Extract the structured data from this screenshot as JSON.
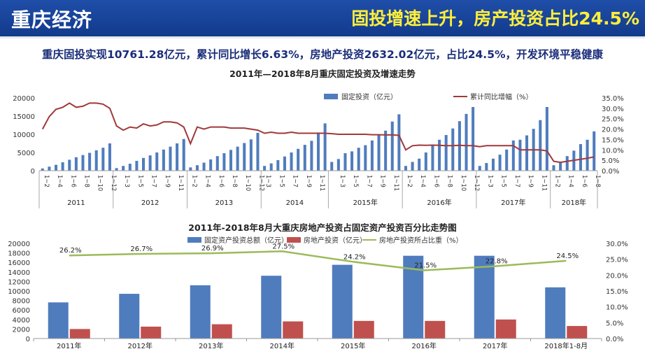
{
  "header": {
    "title": "重庆经济",
    "headline": "固投增速上升，房产投资占比24.5%"
  },
  "summary": "重庆固投实现10761.28亿元，累计同比增长6.63%，房地产投资2632.02亿元，占比24.5%，开发环境平稳健康",
  "colors": {
    "header_bg": "#1b4aa0",
    "headline": "#ffef3a",
    "bar_blue": "#4f7cbd",
    "bar_red": "#c0504d",
    "line_red": "#a0393a",
    "line_green": "#9bbb59"
  },
  "chart_data": [
    {
      "type": "bar",
      "title": "2011年—2018年8月重庆固定投资及增速走势",
      "year_labels": [
        "2011",
        "2012",
        "2013",
        "2014",
        "2015年",
        "2016年",
        "2017年",
        "2018年"
      ],
      "groups": [
        {
          "months": [
            "1~2",
            "1~3",
            "1~4",
            "1~5",
            "1~6",
            "1~7",
            "1~8",
            "1~9",
            "1~10",
            "1~11",
            "1~12"
          ],
          "visible_ticks": [
            "1~2",
            "1~4",
            "1~6",
            "1~8",
            "1~10",
            "1~12"
          ],
          "values": [
            600,
            1100,
            1600,
            2300,
            3000,
            3700,
            4300,
            4900,
            5600,
            6300,
            7500
          ],
          "growth": [
            20.0,
            26.0,
            29.5,
            30.5,
            32.5,
            30.5,
            31.0,
            32.5,
            32.5,
            32.0,
            30.0
          ]
        },
        {
          "months": [
            "1~2",
            "1~3",
            "1~4",
            "1~5",
            "1~6",
            "1~7",
            "1~8",
            "1~9",
            "1~10",
            "1~11",
            "1~12"
          ],
          "visible_ticks": [
            "1~3",
            "1~5",
            "1~7",
            "1~9",
            "1~11"
          ],
          "values": [
            700,
            1300,
            1900,
            2700,
            3500,
            4200,
            5000,
            5800,
            6600,
            7500,
            8700
          ],
          "growth": [
            21.5,
            19.5,
            21.0,
            20.5,
            22.5,
            21.5,
            22.0,
            23.5,
            23.5,
            23.0,
            21.0
          ]
        },
        {
          "months": [
            "1~2",
            "1~3",
            "1~4",
            "1~5",
            "1~6",
            "1~7",
            "1~8",
            "1~9",
            "1~10",
            "1~11",
            "1~12"
          ],
          "visible_ticks": [
            "1~2",
            "1~4",
            "1~6",
            "1~8",
            "1~10",
            "1~12"
          ],
          "values": [
            900,
            1500,
            2200,
            3100,
            4000,
            4800,
            5700,
            6600,
            7600,
            8600,
            10400
          ],
          "growth": [
            13.0,
            21.0,
            20.0,
            21.0,
            21.0,
            21.0,
            20.5,
            20.5,
            20.5,
            20.0,
            19.5
          ]
        },
        {
          "months": [
            "1~3",
            "1~4",
            "1~5",
            "1~6",
            "1~7",
            "1~8",
            "1~9",
            "1~10",
            "1~11",
            "1~12"
          ],
          "visible_ticks": [
            "1~3",
            "1~5",
            "1~7",
            "1~9",
            "1~11"
          ],
          "values": [
            1300,
            2000,
            2900,
            3900,
            5000,
            6000,
            7100,
            8200,
            10500,
            13000
          ],
          "growth": [
            18.0,
            18.5,
            18.0,
            18.0,
            18.5,
            18.0,
            18.0,
            18.0,
            18.0,
            18.0
          ]
        },
        {
          "months": [
            "1~2",
            "1~3",
            "1~4",
            "1~5",
            "1~6",
            "1~7",
            "1~8",
            "1~9",
            "1~10",
            "1~11",
            "1~12"
          ],
          "visible_ticks": [
            "1~3",
            "1~5",
            "1~7",
            "1~9",
            "1~11"
          ],
          "values": [
            2400,
            3200,
            4800,
            5300,
            6300,
            7000,
            8300,
            9800,
            11000,
            13500,
            15500
          ],
          "growth": [
            17.8,
            17.5,
            17.5,
            17.5,
            17.5,
            17.5,
            17.3,
            17.3,
            17.2,
            17.2,
            17.0
          ]
        },
        {
          "months": [
            "1~2",
            "1~3",
            "1~4",
            "1~5",
            "1~6",
            "1~7",
            "1~8",
            "1~9",
            "1~10",
            "1~11",
            "1~12"
          ],
          "visible_ticks": [
            "1~2",
            "1~4",
            "1~6",
            "1~8",
            "1~10",
            "1~12"
          ],
          "values": [
            1300,
            2400,
            3300,
            5000,
            7000,
            8500,
            9800,
            11600,
            13600,
            15600,
            17500
          ],
          "growth": [
            10.0,
            12.0,
            12.3,
            12.2,
            12.3,
            12.2,
            12.0,
            12.0,
            12.2,
            12.0,
            12.0
          ]
        },
        {
          "months": [
            "1~2",
            "1~3",
            "1~4",
            "1~5",
            "1~6",
            "1~7",
            "1~8",
            "1~9",
            "1~10",
            "1~11",
            "1~12"
          ],
          "visible_ticks": [
            "1~3",
            "1~5",
            "1~7",
            "1~9",
            "1~11"
          ],
          "values": [
            1300,
            2100,
            3300,
            4400,
            5800,
            8300,
            8500,
            9700,
            11500,
            13900,
            17500
          ],
          "growth": [
            11.5,
            12.0,
            12.0,
            12.0,
            12.0,
            12.0,
            10.0,
            10.0,
            10.0,
            10.0,
            9.5
          ]
        },
        {
          "months": [
            "1~2",
            "1~3",
            "1~4",
            "1~5",
            "1~6",
            "1~7",
            "1~8"
          ],
          "visible_ticks": [
            "1~2",
            "1~4",
            "1~6",
            "1~8"
          ],
          "values": [
            1500,
            2500,
            4000,
            5500,
            7300,
            8500,
            10800
          ],
          "growth": [
            4.5,
            4.0,
            4.5,
            5.0,
            5.5,
            6.0,
            6.6
          ]
        }
      ],
      "y_left_ticks": [
        "0",
        "5000",
        "10000",
        "15000",
        "20000"
      ],
      "y_right_ticks": [
        "0.0%",
        "5.0%",
        "10.0%",
        "15.0%",
        "20.0%",
        "25.0%",
        "30.0%",
        "35.0%"
      ],
      "ylim_left": [
        0,
        20000
      ],
      "ylim_right": [
        0,
        35
      ],
      "series_names": [
        "固定投资（亿元）",
        "累计同比增幅（%）"
      ]
    },
    {
      "type": "bar",
      "title": "2011年-2018年8月大重庆房地产投资占固定资产投资百分比走势图",
      "categories": [
        "2011年",
        "2012年",
        "2013年",
        "2014年",
        "2015年",
        "2016年",
        "2017年",
        "2018年1-8月"
      ],
      "series": [
        {
          "name": "固定资产投资总额（亿元）",
          "values": [
            7600,
            9400,
            11200,
            13200,
            15500,
            17400,
            17400,
            10761
          ]
        },
        {
          "name": "房地产投资（亿元）",
          "values": [
            2000,
            2500,
            3000,
            3600,
            3700,
            3700,
            4000,
            2632
          ]
        },
        {
          "name": "房地产投资所占比重（%）",
          "values": [
            26.2,
            26.7,
            26.9,
            27.5,
            24.2,
            21.5,
            22.8,
            24.5
          ],
          "labels": [
            "26.2%",
            "26.7%",
            "26.9%",
            "27.5%",
            "24.2%",
            "21.5%",
            "22.8%",
            "24.5%"
          ]
        }
      ],
      "y_left_ticks": [
        "0",
        "2000",
        "4000",
        "6000",
        "8000",
        "10000",
        "12000",
        "14000",
        "16000",
        "18000",
        "20000"
      ],
      "y_right_ticks": [
        "0.0%",
        "5.0%",
        "10.0%",
        "15.0%",
        "20.0%",
        "25.0%",
        "30.0%"
      ],
      "ylim_left": [
        0,
        20000
      ],
      "ylim_right": [
        0,
        30
      ]
    }
  ]
}
